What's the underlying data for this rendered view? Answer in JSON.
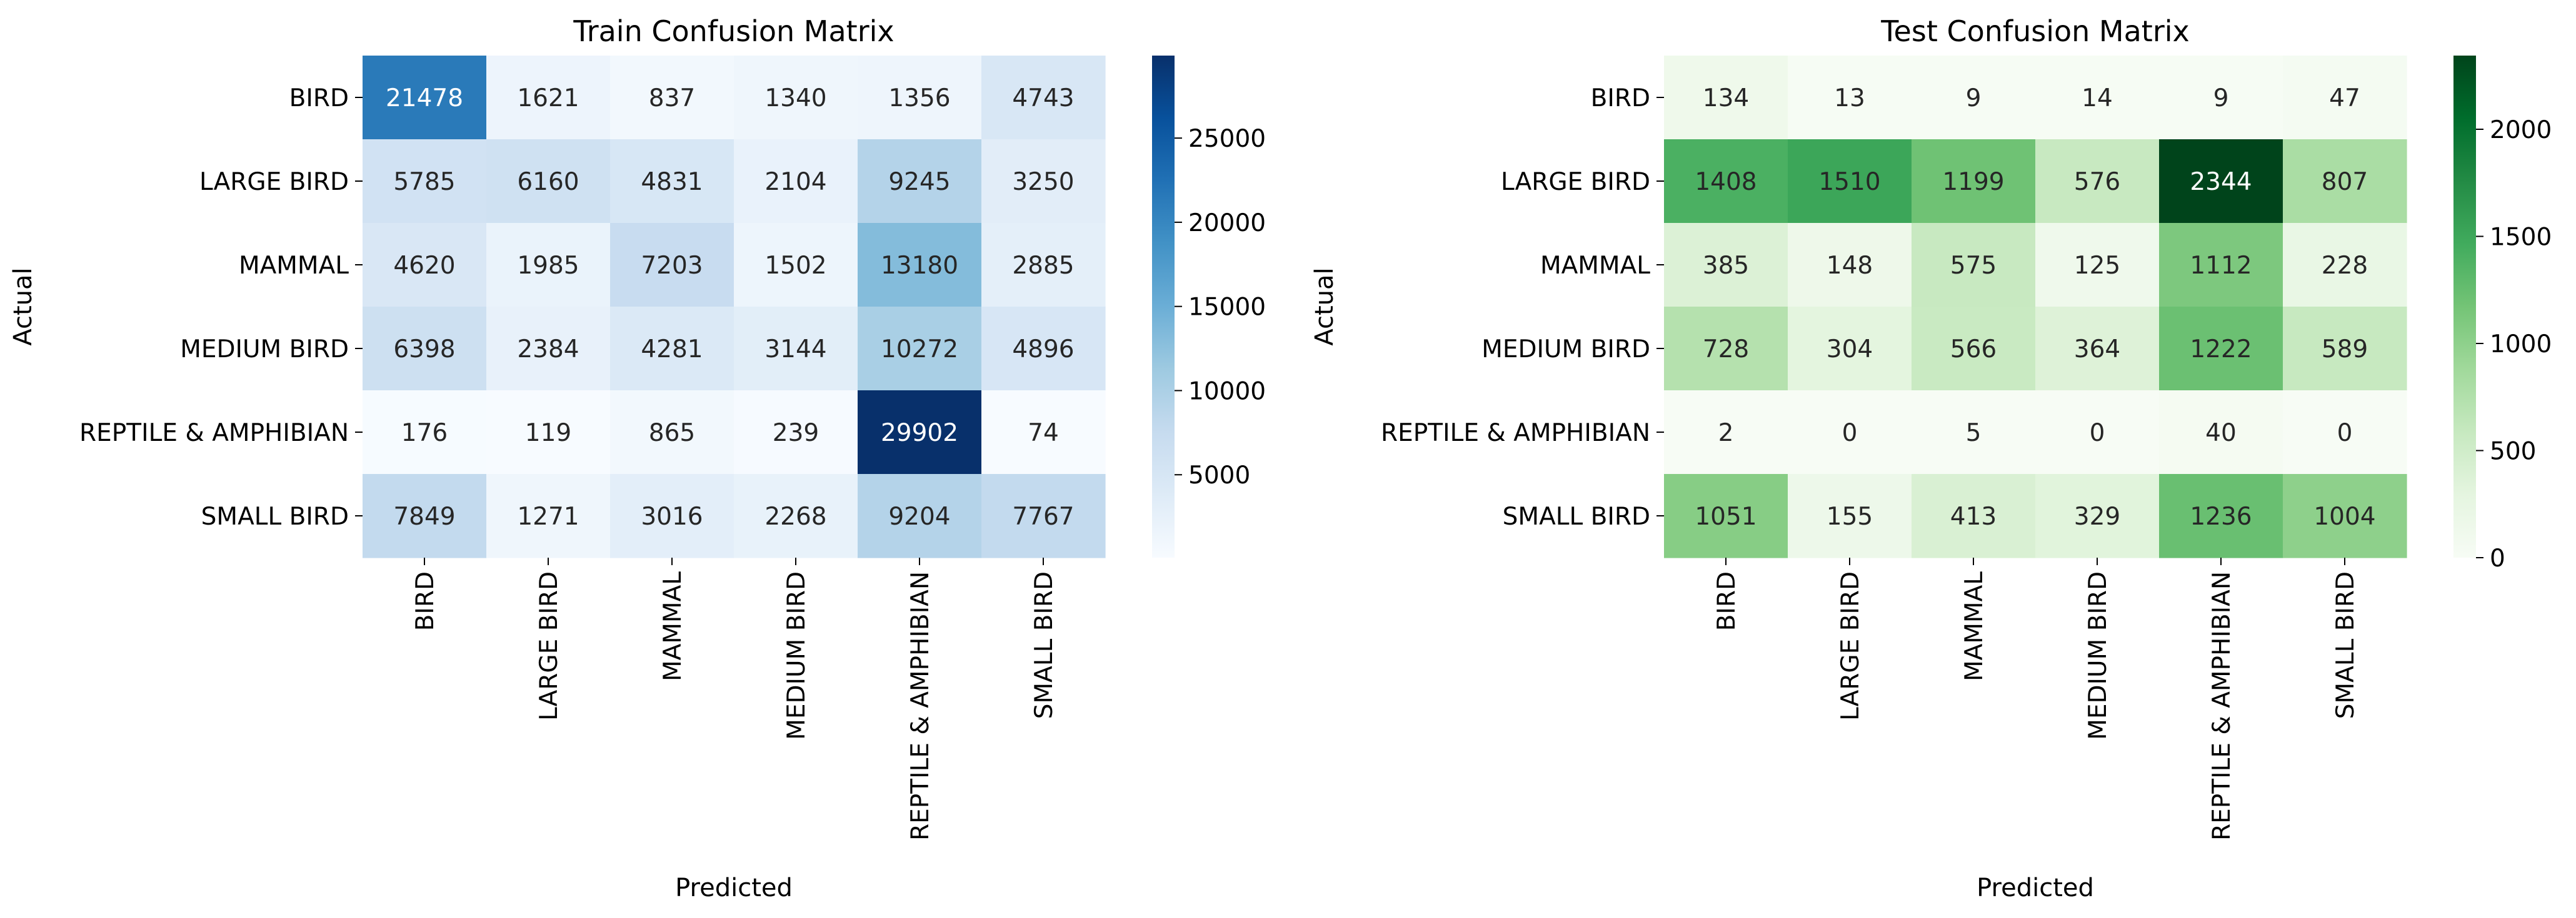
{
  "chart_data": [
    {
      "type": "heatmap",
      "title": "Train Confusion Matrix",
      "xlabel": "Predicted",
      "ylabel": "Actual",
      "row_labels": [
        "BIRD",
        "LARGE BIRD",
        "MAMMAL",
        "MEDIUM BIRD",
        "REPTILE & AMPHIBIAN",
        "SMALL BIRD"
      ],
      "col_labels": [
        "BIRD",
        "LARGE BIRD",
        "MAMMAL",
        "MEDIUM BIRD",
        "REPTILE & AMPHIBIAN",
        "SMALL BIRD"
      ],
      "values": [
        [
          21478,
          1621,
          837,
          1340,
          1356,
          4743
        ],
        [
          5785,
          6160,
          4831,
          2104,
          9245,
          3250
        ],
        [
          4620,
          1985,
          7203,
          1502,
          13180,
          2885
        ],
        [
          6398,
          2384,
          4281,
          3144,
          10272,
          4896
        ],
        [
          176,
          119,
          865,
          239,
          29902,
          74
        ],
        [
          7849,
          1271,
          3016,
          2268,
          9204,
          7767
        ]
      ],
      "colormap": "Blues",
      "colormap_stops": [
        "#f7fbff",
        "#deebf7",
        "#c6dbef",
        "#9ecae1",
        "#6baed6",
        "#4292c6",
        "#2171b5",
        "#08519c",
        "#08306b"
      ],
      "vmin": 74,
      "vmax": 29902,
      "colorbar_ticks": [
        5000,
        10000,
        15000,
        20000,
        25000
      ]
    },
    {
      "type": "heatmap",
      "title": "Test Confusion Matrix",
      "xlabel": "Predicted",
      "ylabel": "Actual",
      "row_labels": [
        "BIRD",
        "LARGE BIRD",
        "MAMMAL",
        "MEDIUM BIRD",
        "REPTILE & AMPHIBIAN",
        "SMALL BIRD"
      ],
      "col_labels": [
        "BIRD",
        "LARGE BIRD",
        "MAMMAL",
        "MEDIUM BIRD",
        "REPTILE & AMPHIBIAN",
        "SMALL BIRD"
      ],
      "values": [
        [
          134,
          13,
          9,
          14,
          9,
          47
        ],
        [
          1408,
          1510,
          1199,
          576,
          2344,
          807
        ],
        [
          385,
          148,
          575,
          125,
          1112,
          228
        ],
        [
          728,
          304,
          566,
          364,
          1222,
          589
        ],
        [
          2,
          0,
          5,
          0,
          40,
          0
        ],
        [
          1051,
          155,
          413,
          329,
          1236,
          1004
        ]
      ],
      "colormap": "Greens",
      "colormap_stops": [
        "#f7fcf5",
        "#e5f5e0",
        "#c7e9c0",
        "#a1d99b",
        "#74c476",
        "#41ab5d",
        "#238b45",
        "#006d2c",
        "#00441b"
      ],
      "vmin": 0,
      "vmax": 2344,
      "colorbar_ticks": [
        0,
        500,
        1000,
        1500,
        2000
      ]
    }
  ]
}
